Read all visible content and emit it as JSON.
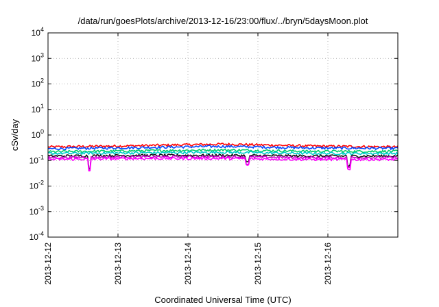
{
  "chart_data": {
    "type": "line",
    "title": "/data/run/goesPlots/archive/2013-12-16/23:00/flux/../bryn/5daysMoon.plot",
    "xlabel": "Coordinated Universal Time (UTC)",
    "ylabel": "cSv/day",
    "yscale": "log",
    "ylim": [
      0.0001,
      10000
    ],
    "yticks": [
      {
        "base": "10",
        "exp": "4",
        "value": 10000
      },
      {
        "base": "10",
        "exp": "3",
        "value": 1000
      },
      {
        "base": "10",
        "exp": "2",
        "value": 100
      },
      {
        "base": "10",
        "exp": "1",
        "value": 10
      },
      {
        "base": "10",
        "exp": "0",
        "value": 1
      },
      {
        "base": "10",
        "exp": "-1",
        "value": 0.1
      },
      {
        "base": "10",
        "exp": "-2",
        "value": 0.01
      },
      {
        "base": "10",
        "exp": "-3",
        "value": 0.001
      },
      {
        "base": "10",
        "exp": "-4",
        "value": 0.0001
      }
    ],
    "xrange": [
      "2013-12-12",
      "2013-12-17"
    ],
    "xticks": [
      "2013-12-12",
      "2013-12-13",
      "2013-12-14",
      "2013-12-15",
      "2013-12-16"
    ],
    "grid": true,
    "series": [
      {
        "color": "#ff0000",
        "level": 0.38,
        "profile": [
          0.34,
          0.38,
          0.44,
          0.37,
          0.34
        ]
      },
      {
        "color": "#0044ff",
        "level": 0.32,
        "profile": [
          0.29,
          0.32,
          0.36,
          0.31,
          0.3
        ]
      },
      {
        "color": "#00cc66",
        "level": 0.24,
        "profile": [
          0.22,
          0.24,
          0.26,
          0.23,
          0.23
        ]
      },
      {
        "color": "#00cccc",
        "level": 0.2,
        "profile": [
          0.19,
          0.2,
          0.21,
          0.19,
          0.19
        ]
      },
      {
        "color": "#111111",
        "level": 0.16,
        "profile": [
          0.15,
          0.16,
          0.16,
          0.15,
          0.15
        ]
      },
      {
        "color": "#cc00cc",
        "level": 0.14,
        "profile": [
          0.13,
          0.14,
          0.14,
          0.13,
          0.13
        ]
      },
      {
        "color": "#ff00ff",
        "level": 0.12,
        "profile": [
          0.11,
          0.12,
          0.12,
          0.11,
          0.11
        ]
      }
    ]
  }
}
